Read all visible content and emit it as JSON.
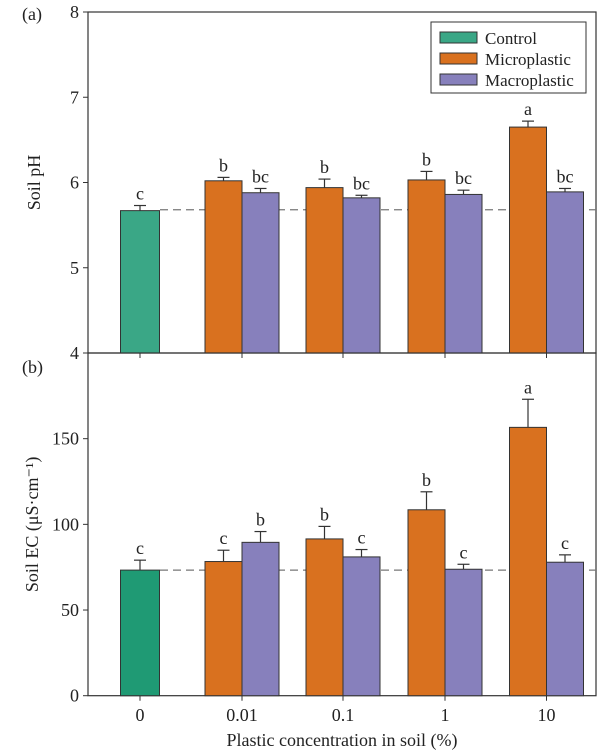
{
  "chart_data": [
    {
      "panel_label": "(a)",
      "type": "bar",
      "ylabel": "Soil pH",
      "ylim": [
        4,
        8
      ],
      "yticks": [
        4,
        5,
        6,
        7,
        8
      ],
      "categories": [
        "0",
        "0.01",
        "0.1",
        "1",
        "10"
      ],
      "reference_line": 5.68,
      "series": [
        {
          "name": "Control",
          "color": "#3aa786",
          "values": [
            5.67,
            null,
            null,
            null,
            null
          ],
          "errors": [
            0.06,
            null,
            null,
            null,
            null
          ],
          "letters": [
            "c",
            null,
            null,
            null,
            null
          ]
        },
        {
          "name": "Microplastic",
          "color": "#d9711f",
          "values": [
            null,
            6.02,
            5.94,
            6.03,
            6.65
          ],
          "errors": [
            null,
            0.04,
            0.1,
            0.1,
            0.07
          ],
          "letters": [
            null,
            "b",
            "b",
            "b",
            "a"
          ]
        },
        {
          "name": "Macroplastic",
          "color": "#8780bc",
          "values": [
            null,
            5.88,
            5.82,
            5.86,
            5.89
          ],
          "errors": [
            null,
            0.05,
            0.03,
            0.05,
            0.04
          ],
          "letters": [
            null,
            "bc",
            "bc",
            "bc",
            "bc"
          ]
        }
      ],
      "legend": "top-right"
    },
    {
      "panel_label": "(b)",
      "type": "bar",
      "ylabel": "Soil EC (μS·cm⁻¹)",
      "xlabel": "Plastic concentration in soil (%)",
      "ylim": [
        0,
        200
      ],
      "yticks": [
        0,
        50,
        100,
        150
      ],
      "categories": [
        "0",
        "0.01",
        "0.1",
        "1",
        "10"
      ],
      "reference_line": 73.3,
      "series": [
        {
          "name": "Control",
          "color": "#1f9a74",
          "values": [
            73.3,
            null,
            null,
            null,
            null
          ],
          "errors": [
            5.8,
            null,
            null,
            null,
            null
          ],
          "letters": [
            "c",
            null,
            null,
            null,
            null
          ]
        },
        {
          "name": "Microplastic",
          "color": "#d9711f",
          "values": [
            null,
            78.3,
            91.5,
            108.5,
            156.6
          ],
          "errors": [
            null,
            6.6,
            7.3,
            10.5,
            16.4
          ],
          "letters": [
            null,
            "c",
            "b",
            "b",
            "a"
          ]
        },
        {
          "name": "Macroplastic",
          "color": "#8780bc",
          "values": [
            null,
            89.5,
            81.0,
            73.8,
            77.9
          ],
          "errors": [
            null,
            6.3,
            4.3,
            2.9,
            4.3
          ],
          "letters": [
            null,
            "b",
            "c",
            "c",
            "c"
          ]
        }
      ]
    }
  ]
}
